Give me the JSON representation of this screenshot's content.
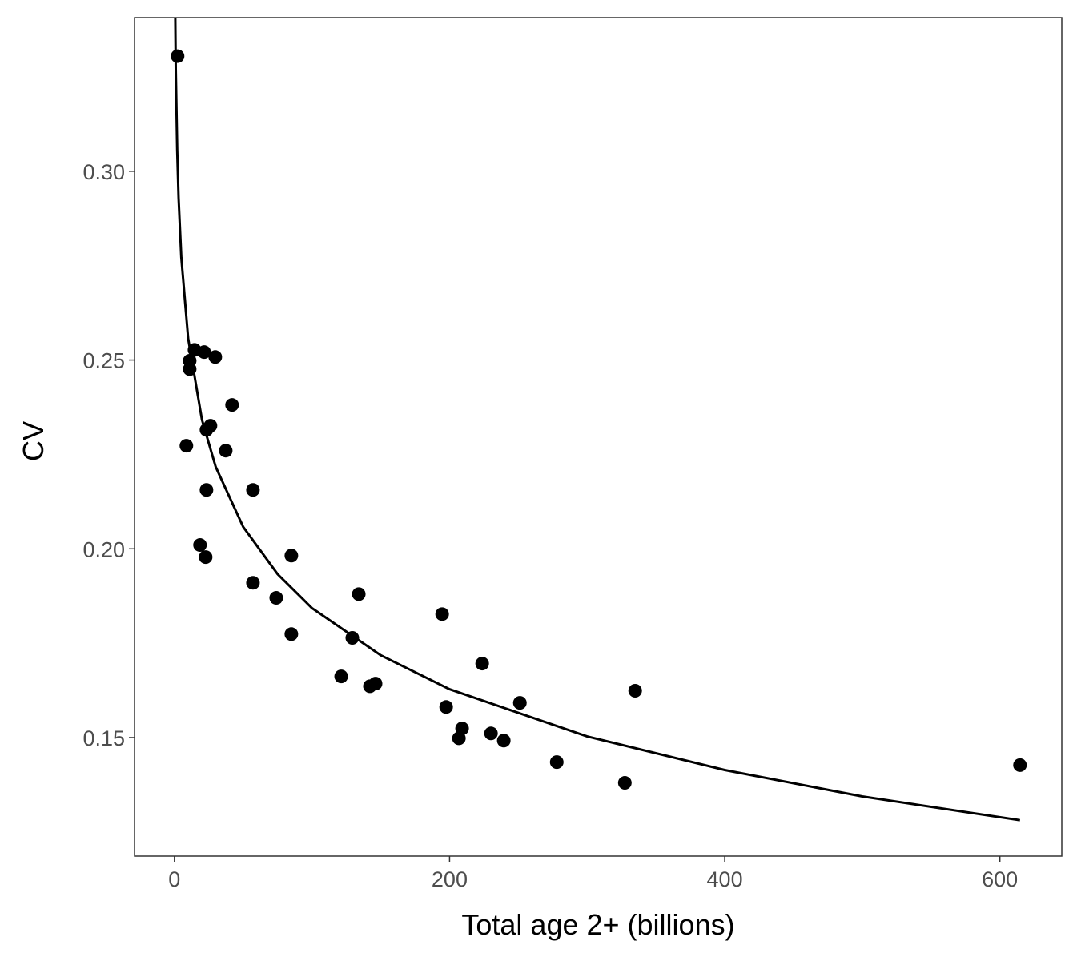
{
  "chart_data": {
    "type": "scatter",
    "title": "",
    "xlabel": "Total age 2+ (billions)",
    "ylabel": "CV",
    "xlim": [
      -29,
      645
    ],
    "ylim": [
      0.1186,
      0.3407
    ],
    "grid": false,
    "x_ticks": [
      0,
      200,
      400,
      600
    ],
    "x_tick_labels": [
      "0",
      "200",
      "400",
      "600"
    ],
    "y_ticks": [
      0.15,
      0.2,
      0.25,
      0.3
    ],
    "y_tick_labels": [
      "0.15",
      "0.20",
      "0.25",
      "0.30"
    ],
    "point_color": "#000000",
    "points": [
      {
        "x": 2.3,
        "y": 0.3305
      },
      {
        "x": 11.1,
        "y": 0.2498
      },
      {
        "x": 11.1,
        "y": 0.2476
      },
      {
        "x": 14.6,
        "y": 0.2527
      },
      {
        "x": 21.6,
        "y": 0.2521
      },
      {
        "x": 29.7,
        "y": 0.2508
      },
      {
        "x": 8.7,
        "y": 0.2273
      },
      {
        "x": 41.9,
        "y": 0.2381
      },
      {
        "x": 26.2,
        "y": 0.2326
      },
      {
        "x": 23.3,
        "y": 0.2315
      },
      {
        "x": 37.3,
        "y": 0.226
      },
      {
        "x": 23.3,
        "y": 0.2156
      },
      {
        "x": 57.1,
        "y": 0.2156
      },
      {
        "x": 18.6,
        "y": 0.201
      },
      {
        "x": 22.7,
        "y": 0.1978
      },
      {
        "x": 85.0,
        "y": 0.1982
      },
      {
        "x": 57.1,
        "y": 0.191
      },
      {
        "x": 74.0,
        "y": 0.187
      },
      {
        "x": 85.0,
        "y": 0.1774
      },
      {
        "x": 134.0,
        "y": 0.188
      },
      {
        "x": 129.3,
        "y": 0.1764
      },
      {
        "x": 121.2,
        "y": 0.1662
      },
      {
        "x": 142.1,
        "y": 0.1636
      },
      {
        "x": 146.2,
        "y": 0.1643
      },
      {
        "x": 194.6,
        "y": 0.1827
      },
      {
        "x": 197.5,
        "y": 0.1581
      },
      {
        "x": 209.1,
        "y": 0.1524
      },
      {
        "x": 206.8,
        "y": 0.1498
      },
      {
        "x": 223.7,
        "y": 0.1696
      },
      {
        "x": 230.1,
        "y": 0.1511
      },
      {
        "x": 239.4,
        "y": 0.1492
      },
      {
        "x": 251.1,
        "y": 0.1592
      },
      {
        "x": 277.9,
        "y": 0.1435
      },
      {
        "x": 327.4,
        "y": 0.138
      },
      {
        "x": 334.9,
        "y": 0.1624
      },
      {
        "x": 614.6,
        "y": 0.1427
      }
    ],
    "fit_line": {
      "color": "#000000",
      "x": [
        0.64,
        1,
        2,
        3,
        5,
        10,
        20,
        30,
        50,
        75,
        100,
        150,
        200,
        300,
        400,
        500,
        614.6
      ],
      "y": [
        0.3409,
        0.3271,
        0.3056,
        0.293,
        0.2772,
        0.2557,
        0.2342,
        0.2217,
        0.2058,
        0.1933,
        0.1843,
        0.1718,
        0.1628,
        0.1503,
        0.1414,
        0.1344,
        0.1281
      ]
    }
  }
}
